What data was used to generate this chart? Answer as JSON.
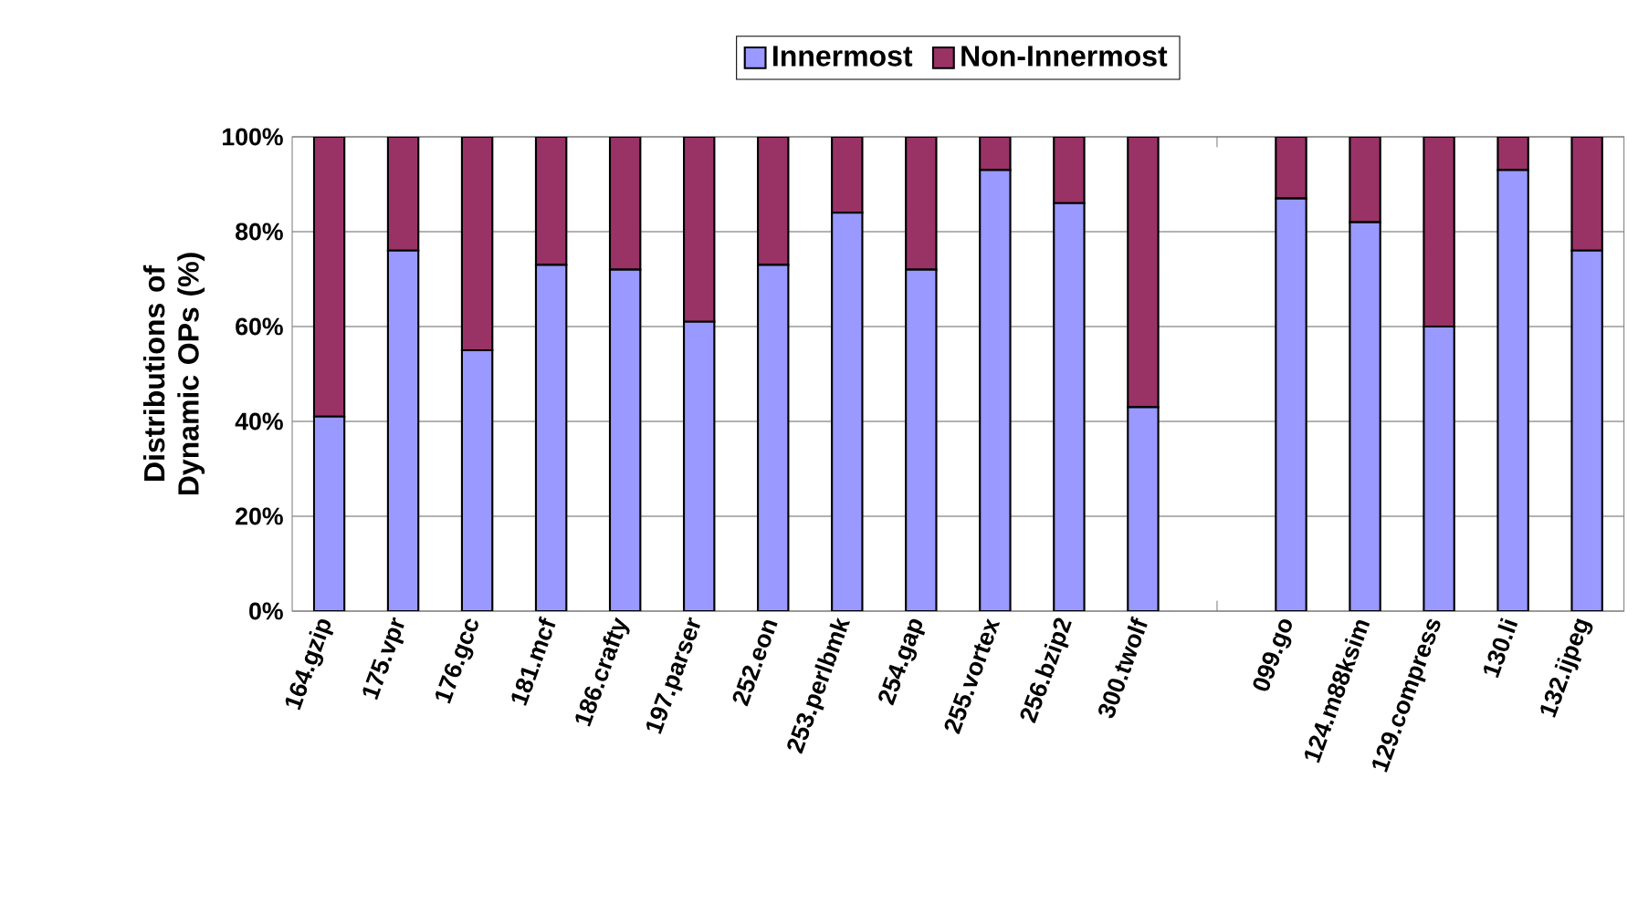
{
  "chart_data": {
    "type": "bar",
    "stacked": true,
    "ylabel": "Distributions of Dynamic OPs (%)",
    "categories": [
      "164.gzip",
      "175.vpr",
      "176.gcc",
      "181.mcf",
      "186.crafty",
      "197.parser",
      "252.eon",
      "253.perlbmk",
      "254.gap",
      "255.vortex",
      "256.bzip2",
      "300.twolf",
      null,
      "099.go",
      "124.m88ksim",
      "129.compress",
      "130.li",
      "132.ijpeg"
    ],
    "series": [
      {
        "name": "Innermost",
        "color": "#9999ff",
        "values": [
          41,
          76,
          55,
          73,
          72,
          61,
          73,
          84,
          72,
          93,
          86,
          43,
          null,
          87,
          82,
          60,
          93,
          76
        ]
      },
      {
        "name": "Non-Innermost",
        "color": "#993366",
        "values": [
          59,
          24,
          45,
          27,
          28,
          39,
          27,
          16,
          28,
          7,
          14,
          57,
          null,
          13,
          18,
          40,
          7,
          24
        ]
      }
    ],
    "ylim": [
      0,
      100
    ],
    "yticks": [
      {
        "value": 0,
        "label": "0%"
      },
      {
        "value": 20,
        "label": "20%"
      },
      {
        "value": 40,
        "label": "40%"
      },
      {
        "value": 60,
        "label": "60%"
      },
      {
        "value": 80,
        "label": "80%"
      },
      {
        "value": 100,
        "label": "100%"
      }
    ],
    "grid": "y",
    "legend": "top"
  }
}
